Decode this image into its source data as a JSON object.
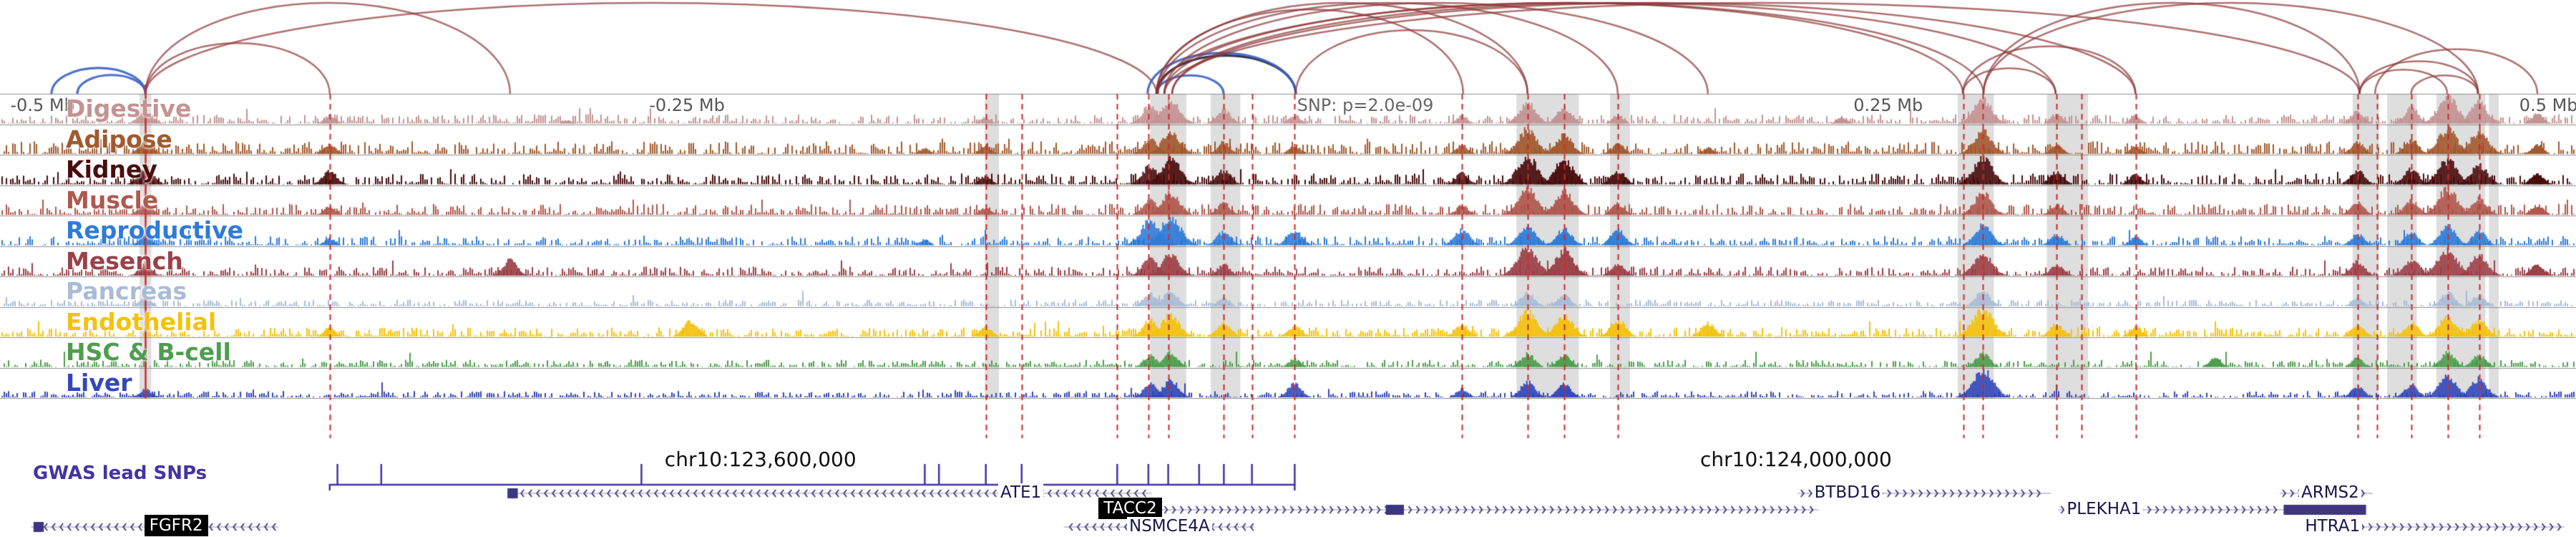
{
  "chart_data": {
    "type": "genome-browser-tracks",
    "region": {
      "chromosome": "chr10",
      "unit": "Mb",
      "relative_range": [
        -0.5,
        0.5
      ]
    },
    "scale_labels": [
      {
        "text": "-0.5 Mb",
        "x": 0.004,
        "color": "#555555"
      },
      {
        "text": "-0.25 Mb",
        "x": 0.252,
        "color": "#555555"
      },
      {
        "text": "SNP: p=2.0e-09",
        "x": 0.5035,
        "color": "#666666"
      },
      {
        "text": "0.25 Mb",
        "x": 0.7195,
        "color": "#555555"
      },
      {
        "text": "0.5 Mb",
        "x": 0.978,
        "color": "#555555"
      }
    ],
    "coordinates": [
      {
        "text": "chr10:123,600,000",
        "x": 0.258
      },
      {
        "text": "chr10:124,000,000",
        "x": 0.66
      }
    ],
    "tracks": [
      {
        "name": "Digestive",
        "color": "#c49393",
        "noise": 0.1,
        "peaks": [
          [
            0.0565,
            0.5
          ],
          [
            0.128,
            0.3
          ],
          [
            0.22,
            0.12
          ],
          [
            0.3827,
            0.22
          ],
          [
            0.4465,
            0.65
          ],
          [
            0.4545,
            0.85
          ],
          [
            0.4751,
            0.5
          ],
          [
            0.5026,
            0.3
          ],
          [
            0.5676,
            0.28
          ],
          [
            0.593,
            0.75
          ],
          [
            0.6072,
            0.55
          ],
          [
            0.6281,
            0.3
          ],
          [
            0.715,
            0.22
          ],
          [
            0.7698,
            0.85
          ],
          [
            0.7984,
            0.35
          ],
          [
            0.8291,
            0.28
          ],
          [
            0.9152,
            0.45
          ],
          [
            0.9362,
            0.55
          ],
          [
            0.9502,
            0.95
          ],
          [
            0.9624,
            0.75
          ],
          [
            0.985,
            0.35
          ]
        ]
      },
      {
        "name": "Adipose",
        "color": "#a2592f",
        "noise": 0.14,
        "peaks": [
          [
            0.0565,
            0.45
          ],
          [
            0.128,
            0.35
          ],
          [
            0.359,
            0.2
          ],
          [
            0.3827,
            0.28
          ],
          [
            0.4465,
            0.55
          ],
          [
            0.4545,
            0.8
          ],
          [
            0.4751,
            0.42
          ],
          [
            0.5026,
            0.3
          ],
          [
            0.5676,
            0.32
          ],
          [
            0.593,
            0.88
          ],
          [
            0.6072,
            0.68
          ],
          [
            0.6281,
            0.38
          ],
          [
            0.663,
            0.22
          ],
          [
            0.7698,
            0.82
          ],
          [
            0.7984,
            0.33
          ],
          [
            0.8291,
            0.28
          ],
          [
            0.9152,
            0.42
          ],
          [
            0.9362,
            0.5
          ],
          [
            0.9502,
            0.88
          ],
          [
            0.9624,
            0.8
          ],
          [
            0.985,
            0.33
          ]
        ]
      },
      {
        "name": "Kidney",
        "color": "#4a0d0d",
        "noise": 0.12,
        "peaks": [
          [
            0.0565,
            0.6
          ],
          [
            0.128,
            0.5
          ],
          [
            0.3827,
            0.3
          ],
          [
            0.4465,
            0.65
          ],
          [
            0.4545,
            0.92
          ],
          [
            0.4751,
            0.5
          ],
          [
            0.5676,
            0.4
          ],
          [
            0.593,
            1.0
          ],
          [
            0.6072,
            0.88
          ],
          [
            0.6281,
            0.5
          ],
          [
            0.7698,
            0.92
          ],
          [
            0.7984,
            0.45
          ],
          [
            0.8291,
            0.35
          ],
          [
            0.9152,
            0.5
          ],
          [
            0.9362,
            0.55
          ],
          [
            0.9502,
            0.88
          ],
          [
            0.9624,
            0.7
          ],
          [
            0.985,
            0.4
          ]
        ]
      },
      {
        "name": "Muscle",
        "color": "#b0584e",
        "noise": 0.12,
        "peaks": [
          [
            0.0565,
            0.4
          ],
          [
            0.128,
            0.3
          ],
          [
            0.3827,
            0.25
          ],
          [
            0.4465,
            0.55
          ],
          [
            0.4545,
            0.78
          ],
          [
            0.4751,
            0.42
          ],
          [
            0.5676,
            0.35
          ],
          [
            0.593,
            0.92
          ],
          [
            0.6072,
            0.82
          ],
          [
            0.6281,
            0.4
          ],
          [
            0.7698,
            0.78
          ],
          [
            0.7984,
            0.35
          ],
          [
            0.9152,
            0.45
          ],
          [
            0.9362,
            0.5
          ],
          [
            0.9502,
            0.92
          ],
          [
            0.9624,
            0.6
          ],
          [
            0.985,
            0.35
          ]
        ]
      },
      {
        "name": "Reproductive",
        "color": "#2f7bd8",
        "noise": 0.1,
        "peaks": [
          [
            0.0565,
            0.35
          ],
          [
            0.128,
            0.25
          ],
          [
            0.359,
            0.2
          ],
          [
            0.4465,
            0.88
          ],
          [
            0.4545,
            1.0
          ],
          [
            0.4751,
            0.5
          ],
          [
            0.5026,
            0.55
          ],
          [
            0.5676,
            0.58
          ],
          [
            0.593,
            0.72
          ],
          [
            0.6072,
            0.6
          ],
          [
            0.6281,
            0.55
          ],
          [
            0.7698,
            0.72
          ],
          [
            0.7984,
            0.4
          ],
          [
            0.8291,
            0.3
          ],
          [
            0.9152,
            0.4
          ],
          [
            0.9362,
            0.45
          ],
          [
            0.9502,
            0.68
          ],
          [
            0.9624,
            0.5
          ]
        ]
      },
      {
        "name": "Mesench",
        "color": "#9b4148",
        "noise": 0.1,
        "peaks": [
          [
            0.0565,
            0.4
          ],
          [
            0.198,
            0.55
          ],
          [
            0.4465,
            0.6
          ],
          [
            0.4545,
            0.78
          ],
          [
            0.4751,
            0.4
          ],
          [
            0.593,
            1.0
          ],
          [
            0.6072,
            0.9
          ],
          [
            0.6281,
            0.45
          ],
          [
            0.7698,
            0.82
          ],
          [
            0.7984,
            0.4
          ],
          [
            0.9152,
            0.5
          ],
          [
            0.9362,
            0.6
          ],
          [
            0.9502,
            0.95
          ],
          [
            0.9624,
            0.75
          ],
          [
            0.985,
            0.4
          ]
        ]
      },
      {
        "name": "Pancreas",
        "color": "#a9bcd6",
        "noise": 0.07,
        "peaks": [
          [
            0.0565,
            0.3
          ],
          [
            0.4465,
            0.45
          ],
          [
            0.4545,
            0.55
          ],
          [
            0.4751,
            0.3
          ],
          [
            0.593,
            0.48
          ],
          [
            0.6072,
            0.4
          ],
          [
            0.7698,
            0.52
          ],
          [
            0.9152,
            0.3
          ],
          [
            0.9502,
            0.48
          ],
          [
            0.9624,
            0.4
          ]
        ]
      },
      {
        "name": "Endothelial",
        "color": "#f4c20d",
        "noise": 0.1,
        "peaks": [
          [
            0.128,
            0.3
          ],
          [
            0.268,
            0.55
          ],
          [
            0.3827,
            0.35
          ],
          [
            0.4465,
            0.58
          ],
          [
            0.4545,
            0.78
          ],
          [
            0.4751,
            0.5
          ],
          [
            0.5026,
            0.4
          ],
          [
            0.5676,
            0.45
          ],
          [
            0.593,
            0.88
          ],
          [
            0.6072,
            0.78
          ],
          [
            0.6281,
            0.6
          ],
          [
            0.663,
            0.5
          ],
          [
            0.7698,
            1.0
          ],
          [
            0.7984,
            0.45
          ],
          [
            0.8291,
            0.35
          ],
          [
            0.9152,
            0.45
          ],
          [
            0.9362,
            0.5
          ],
          [
            0.9502,
            0.72
          ],
          [
            0.9624,
            0.6
          ]
        ]
      },
      {
        "name": "HSC & B-cell",
        "color": "#4d9e4d",
        "noise": 0.08,
        "peaks": [
          [
            0.4465,
            0.42
          ],
          [
            0.4545,
            0.52
          ],
          [
            0.5026,
            0.3
          ],
          [
            0.593,
            0.48
          ],
          [
            0.6072,
            0.42
          ],
          [
            0.7698,
            0.5
          ],
          [
            0.86,
            0.35
          ],
          [
            0.9152,
            0.32
          ],
          [
            0.9502,
            0.52
          ],
          [
            0.9624,
            0.45
          ]
        ]
      },
      {
        "name": "Liver",
        "color": "#3347bb",
        "noise": 0.07,
        "peaks": [
          [
            0.0565,
            0.3
          ],
          [
            0.4465,
            0.48
          ],
          [
            0.4545,
            0.62
          ],
          [
            0.5026,
            0.5
          ],
          [
            0.5676,
            0.3
          ],
          [
            0.593,
            0.55
          ],
          [
            0.6072,
            0.48
          ],
          [
            0.7698,
            1.0
          ],
          [
            0.9152,
            0.4
          ],
          [
            0.9362,
            0.45
          ],
          [
            0.9502,
            0.78
          ],
          [
            0.9624,
            0.68
          ]
        ]
      }
    ],
    "solid_red_line": 0.0565,
    "red_dashed_lines": [
      0.128,
      0.3827,
      0.3966,
      0.4337,
      0.4458,
      0.4535,
      0.4751,
      0.486,
      0.5026,
      0.5676,
      0.593,
      0.6072,
      0.6281,
      0.7621,
      0.7698,
      0.7984,
      0.808,
      0.8291,
      0.9152,
      0.9229,
      0.9362,
      0.9502,
      0.9624
    ],
    "highlight_bands": [
      [
        0.0542,
        0.0045
      ],
      [
        0.3823,
        0.0055
      ],
      [
        0.4465,
        0.014
      ],
      [
        0.47,
        0.0115
      ],
      [
        0.5887,
        0.0242
      ],
      [
        0.625,
        0.0077
      ],
      [
        0.76,
        0.014
      ],
      [
        0.7946,
        0.016
      ],
      [
        0.9133,
        0.0102
      ],
      [
        0.9267,
        0.0115
      ],
      [
        0.9458,
        0.019
      ],
      [
        0.9662,
        0.0038
      ]
    ],
    "arcs": [
      [
        0.02,
        0.0565,
        "b"
      ],
      [
        0.03,
        0.0565,
        "b"
      ],
      [
        0.0565,
        0.128,
        "m"
      ],
      [
        0.0565,
        0.198,
        "m"
      ],
      [
        0.0565,
        0.449,
        "m"
      ],
      [
        0.449,
        0.475,
        "b"
      ],
      [
        0.449,
        0.503,
        "k"
      ],
      [
        0.4455,
        0.503,
        "b"
      ],
      [
        0.449,
        0.568,
        "m"
      ],
      [
        0.449,
        0.593,
        "m"
      ],
      [
        0.4495,
        0.628,
        "m"
      ],
      [
        0.452,
        0.663,
        "m"
      ],
      [
        0.452,
        0.762,
        "m"
      ],
      [
        0.4495,
        0.77,
        "m"
      ],
      [
        0.455,
        0.798,
        "m"
      ],
      [
        0.455,
        0.829,
        "m"
      ],
      [
        0.452,
        0.916,
        "m"
      ],
      [
        0.503,
        0.593,
        "m"
      ],
      [
        0.762,
        0.798,
        "m"
      ],
      [
        0.762,
        0.829,
        "m"
      ],
      [
        0.77,
        0.916,
        "m"
      ],
      [
        0.77,
        0.962,
        "m"
      ],
      [
        0.916,
        0.95,
        "m"
      ],
      [
        0.916,
        0.962,
        "m"
      ],
      [
        0.922,
        0.985,
        "m"
      ],
      [
        0.936,
        0.962,
        "m"
      ]
    ],
    "arc_colors": {
      "m": "#8b3434",
      "b": "#3a62c8",
      "k": "#20203a"
    },
    "line_color": "#cc2a2a",
    "highlight_color": "#dedede",
    "gwas_track": {
      "label": "GWAS lead SNPs",
      "color": "#4334a4",
      "baseline": [
        0.128,
        0.5026
      ],
      "ticks": [
        0.131,
        0.148,
        0.249,
        0.359,
        0.3645,
        0.3827,
        0.3966,
        0.4337,
        0.4458,
        0.4535,
        0.4655,
        0.4751,
        0.486,
        0.5026
      ]
    },
    "gene_color": "#3d3580",
    "genes": [
      {
        "label": "FGFR2",
        "boxed": true,
        "row": 3,
        "label_x": 0.056,
        "line": [
          0.012,
          0.108
        ],
        "dir": "left",
        "exons": [
          [
            0.013,
            0.004
          ]
        ]
      },
      {
        "label": "ATE1",
        "boxed": false,
        "row": 1,
        "label_x": 0.3875,
        "line": [
          0.197,
          0.447
        ],
        "dir": "left",
        "exons": [
          [
            0.197,
            0.004
          ]
        ]
      },
      {
        "label": "TACC2",
        "boxed": true,
        "row": 2,
        "label_x": 0.4265,
        "line": [
          0.4265,
          0.706
        ],
        "dir": "right",
        "exons": [
          [
            0.4455,
            0.005
          ],
          [
            0.538,
            0.007
          ]
        ]
      },
      {
        "label": "NSMCE4A",
        "boxed": false,
        "row": 3,
        "label_x": 0.4375,
        "line": [
          0.413,
          0.487
        ],
        "dir": "left",
        "exons": []
      },
      {
        "label": "BTBD16",
        "boxed": false,
        "row": 1,
        "label_x": 0.7035,
        "line": [
          0.698,
          0.796
        ],
        "dir": "right",
        "exons": []
      },
      {
        "label": "PLEKHA1",
        "boxed": false,
        "row": 2,
        "label_x": 0.8015,
        "line": [
          0.799,
          0.887
        ],
        "dir": "right",
        "exons": []
      },
      {
        "label": "ARMS2",
        "boxed": false,
        "row": 1,
        "label_x": 0.8925,
        "line": [
          0.885,
          0.921
        ],
        "dir": "right",
        "exons": [
          [
            0.8865,
            0.032,
            2
          ]
        ]
      },
      {
        "label": "HTRA1",
        "boxed": false,
        "row": 3,
        "label_x": 0.894,
        "line": [
          0.894,
          0.9955
        ],
        "dir": "right",
        "exons": []
      }
    ]
  }
}
